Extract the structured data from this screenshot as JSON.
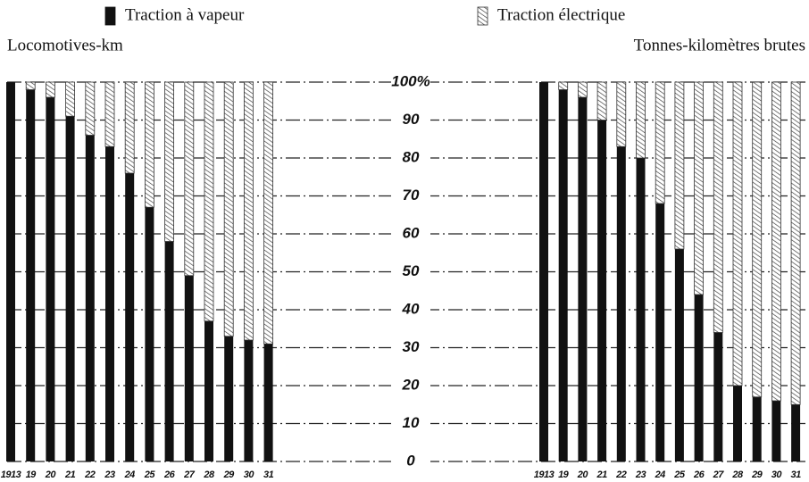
{
  "chart_data": {
    "type": "bar",
    "stacked": true,
    "categories": [
      "1913",
      "19",
      "20",
      "21",
      "22",
      "23",
      "24",
      "25",
      "26",
      "27",
      "28",
      "29",
      "30",
      "31"
    ],
    "legend": [
      {
        "name": "Traction à vapeur",
        "color": "#111111",
        "pattern": "solid"
      },
      {
        "name": "Traction électrique",
        "color": "#333333",
        "pattern": "hatch"
      }
    ],
    "ylim": [
      0,
      100
    ],
    "yticks": [
      0,
      10,
      20,
      30,
      40,
      50,
      60,
      70,
      80,
      90,
      {
        "value": 100,
        "label": "100%"
      }
    ],
    "grid": true,
    "panels": [
      {
        "title": "Locomotives-km",
        "series": [
          {
            "values": [
              100,
              98,
              96,
              91,
              86,
              83,
              76,
              67,
              58,
              49,
              37,
              33,
              32,
              31
            ]
          },
          {
            "values": [
              0,
              2,
              4,
              9,
              14,
              17,
              24,
              33,
              42,
              51,
              63,
              67,
              68,
              69
            ]
          }
        ]
      },
      {
        "title": "Tonnes-kilomètres brutes",
        "series": [
          {
            "values": [
              100,
              98,
              96,
              90,
              83,
              80,
              68,
              56,
              44,
              34,
              20,
              17,
              16,
              15
            ]
          },
          {
            "values": [
              0,
              2,
              4,
              10,
              17,
              20,
              32,
              44,
              56,
              66,
              80,
              83,
              84,
              85
            ]
          }
        ]
      }
    ]
  }
}
